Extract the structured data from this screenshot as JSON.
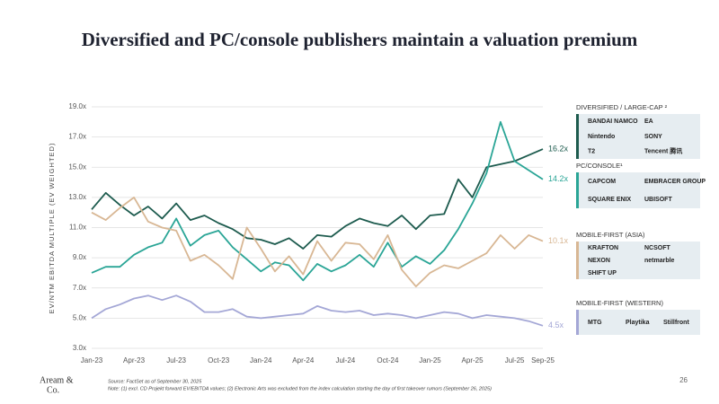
{
  "chart_data": {
    "type": "line",
    "title": "Diversified and PC/console publishers maintain a valuation premium",
    "y_axis_label": "EV/NTM EBITDA MULTIPLE (EV WEIGHTED)",
    "categories": [
      "Jan-23",
      null,
      null,
      "Apr-23",
      null,
      null,
      "Jul-23",
      null,
      null,
      "Oct-23",
      null,
      null,
      "Jan-24",
      null,
      null,
      "Apr-24",
      null,
      null,
      "Jul-24",
      null,
      null,
      "Oct-24",
      null,
      null,
      "Jan-25",
      null,
      null,
      "Apr-25",
      null,
      null,
      "Jul-25",
      null,
      "Sep-25"
    ],
    "ylim": [
      3,
      19
    ],
    "yticks": [
      {
        "value": 3,
        "label": "3.0x"
      },
      {
        "value": 5,
        "label": "5.0x"
      },
      {
        "value": 7,
        "label": "7.0x"
      },
      {
        "value": 9,
        "label": "9.0x"
      },
      {
        "value": 11,
        "label": "11.0x"
      },
      {
        "value": 13,
        "label": "13.0x"
      },
      {
        "value": 15,
        "label": "15.0x"
      },
      {
        "value": 17,
        "label": "17.0x"
      },
      {
        "value": 19,
        "label": "19.0x"
      }
    ],
    "grid": true,
    "series": [
      {
        "name": "DIVERSIFIED / LARGE-CAP ²",
        "color": "#1d5b4e",
        "end_label": "16.2x",
        "logos": [
          "BANDAI NAMCO",
          "EA",
          "Nintendo",
          "SONY",
          "T2",
          "Tencent 腾讯"
        ],
        "values": [
          12.2,
          13.3,
          12.5,
          11.8,
          12.4,
          11.6,
          12.6,
          11.5,
          11.8,
          11.3,
          10.9,
          10.3,
          10.2,
          9.9,
          10.3,
          9.6,
          10.5,
          10.4,
          11.1,
          11.6,
          11.3,
          11.1,
          11.8,
          10.9,
          11.8,
          11.9,
          14.2,
          13.0,
          15.0,
          15.2,
          15.4,
          15.8,
          16.2
        ]
      },
      {
        "name": "PC/CONSOLE¹",
        "color": "#2aa596",
        "end_label": "14.2x",
        "logos": [
          "CAPCOM",
          "EMBRACER GROUP",
          "SQUARE ENIX",
          "UBISOFT"
        ],
        "values": [
          8.0,
          8.4,
          8.4,
          9.2,
          9.7,
          10.0,
          11.6,
          9.8,
          10.5,
          10.8,
          9.7,
          8.9,
          8.1,
          8.7,
          8.5,
          7.5,
          8.6,
          8.1,
          8.5,
          9.2,
          8.4,
          10.0,
          8.4,
          9.1,
          8.6,
          9.5,
          10.9,
          12.6,
          14.6,
          18.0,
          15.4,
          14.8,
          14.2
        ]
      },
      {
        "name": "MOBILE-FIRST (ASIA)",
        "color": "#d8b794",
        "end_label": "10.1x",
        "logos": [
          "KRAFTON",
          "NCSOFT",
          "NEXON",
          "netmarble",
          "SHIFT UP"
        ],
        "values": [
          12.0,
          11.5,
          12.3,
          13.0,
          11.4,
          11.0,
          10.8,
          8.8,
          9.2,
          8.5,
          7.6,
          11.0,
          9.6,
          8.1,
          9.1,
          7.9,
          10.1,
          8.8,
          10.0,
          9.9,
          8.9,
          10.5,
          8.2,
          7.1,
          8.0,
          8.5,
          8.3,
          8.8,
          9.3,
          10.5,
          9.6,
          10.5,
          10.1
        ]
      },
      {
        "name": "MOBILE-FIRST (WESTERN)",
        "color": "#a4a7d6",
        "end_label": "4.5x",
        "logos": [
          "MTG",
          "Playtika",
          "Stillfront"
        ],
        "values": [
          5.0,
          5.6,
          5.9,
          6.3,
          6.5,
          6.2,
          6.5,
          6.1,
          5.4,
          5.4,
          5.6,
          5.1,
          5.0,
          5.1,
          5.2,
          5.3,
          5.8,
          5.5,
          5.4,
          5.5,
          5.2,
          5.3,
          5.2,
          5.0,
          5.2,
          5.4,
          5.3,
          5.0,
          5.2,
          5.1,
          5.0,
          4.8,
          4.5
        ]
      }
    ],
    "source": "Source: FactSet as of September 30, 2025",
    "note": "Note: (1) excl. CD Projekt forward EV/EBITDA values; (2) Electronic Arts was excluded from the index calculation starting the day of first takeover rumors (September 26, 2025)",
    "brand": [
      "Aream &",
      "Co."
    ],
    "page_number": "26"
  }
}
